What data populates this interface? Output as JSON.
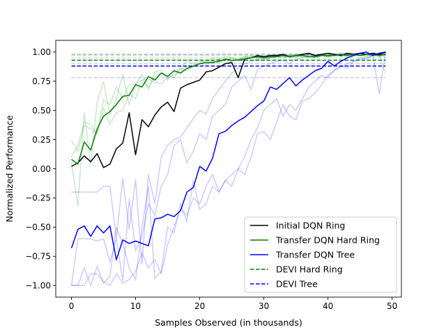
{
  "chart_data": {
    "type": "line",
    "title": "",
    "xlabel": "Samples Observed (in thousands)",
    "ylabel": "Normalized Performance",
    "xlim": [
      -2.45,
      51.45
    ],
    "ylim": [
      -1.1,
      1.1
    ],
    "xticks": [
      0,
      10,
      20,
      30,
      40,
      50
    ],
    "xtick_labels": [
      "0",
      "10",
      "20",
      "30",
      "40",
      "50"
    ],
    "yticks": [
      -1.0,
      -0.75,
      -0.5,
      -0.25,
      0.0,
      0.25,
      0.5,
      0.75,
      1.0
    ],
    "ytick_labels": [
      "−1.00",
      "−0.75",
      "−0.50",
      "−0.25",
      "0.00",
      "0.25",
      "0.50",
      "0.75",
      "1.00"
    ],
    "grid": false,
    "legend_position": "lower-right",
    "series": [
      {
        "name": "Initial DQN Ring",
        "color": "#000000",
        "style": "solid",
        "x_start": 0,
        "values": [
          0.02,
          0.05,
          0.11,
          0.06,
          0.13,
          0.01,
          0.04,
          0.17,
          0.22,
          0.48,
          0.12,
          0.42,
          0.36,
          0.46,
          0.53,
          0.57,
          0.49,
          0.69,
          0.72,
          0.74,
          0.76,
          0.83,
          0.84,
          0.87,
          0.9,
          0.91,
          0.78,
          0.94,
          0.95,
          0.97,
          0.96,
          0.97,
          0.97,
          0.98,
          0.96,
          0.97,
          0.98,
          0.99,
          0.97,
          0.98,
          0.99,
          0.98,
          0.97,
          0.99,
          0.98,
          0.99,
          0.98,
          0.99,
          0.98,
          1.0
        ]
      },
      {
        "name": "Transfer DQN Hard Ring",
        "color": "#008000",
        "style": "solid",
        "x_start": 0,
        "values": [
          0.08,
          0.04,
          0.23,
          0.16,
          0.34,
          0.45,
          0.49,
          0.55,
          0.62,
          0.63,
          0.72,
          0.7,
          0.79,
          0.76,
          0.82,
          0.79,
          0.84,
          0.82,
          0.86,
          0.88,
          0.9,
          0.91,
          0.91,
          0.92,
          0.94,
          0.93,
          0.93,
          0.94,
          0.95,
          0.96,
          0.95,
          0.96,
          0.96,
          0.97,
          0.96,
          0.97,
          0.97,
          0.96,
          0.96,
          0.97,
          0.97,
          0.97,
          0.98,
          0.97,
          0.98,
          0.97,
          0.98,
          0.98,
          0.97,
          0.98
        ]
      },
      {
        "name": "Transfer DQN Tree",
        "color": "#0000ff",
        "style": "solid",
        "x_start": 0,
        "values": [
          -0.68,
          -0.52,
          -0.49,
          -0.58,
          -0.49,
          -0.55,
          -0.49,
          -0.78,
          -0.61,
          -0.64,
          -0.62,
          -0.64,
          -0.66,
          -0.43,
          -0.42,
          -0.39,
          -0.41,
          -0.36,
          -0.2,
          -0.16,
          0.02,
          -0.02,
          0.09,
          0.3,
          0.32,
          0.37,
          0.41,
          0.44,
          0.49,
          0.54,
          0.58,
          0.7,
          0.68,
          0.73,
          0.78,
          0.71,
          0.76,
          0.8,
          0.84,
          0.86,
          0.92,
          0.88,
          0.92,
          0.95,
          0.97,
          0.99,
          1.0,
          0.97,
          0.99,
          1.0
        ]
      },
      {
        "name": "DEVI Hard Ring",
        "color": "#008000",
        "style": "dashed",
        "constant": 0.93
      },
      {
        "name": "DEVI Tree",
        "color": "#0000ff",
        "style": "dashed",
        "constant": 0.88
      }
    ],
    "faint_runs": [
      {
        "color": "#008000",
        "values": [
          0.24,
          0.15,
          0.37,
          0.34,
          0.3,
          0.59,
          0.55,
          0.7,
          0.6,
          0.72,
          0.73,
          0.76,
          0.77,
          0.74,
          0.73,
          0.78,
          0.8,
          0.85,
          0.88,
          0.87,
          0.9,
          0.89,
          0.92,
          0.91,
          0.93,
          0.92,
          0.94,
          0.95,
          0.96,
          0.95,
          0.94,
          0.95,
          0.96,
          0.97,
          0.95,
          0.96,
          0.97,
          0.96,
          0.97,
          0.98,
          0.96,
          0.97,
          0.96,
          0.98,
          0.97,
          0.97,
          0.98,
          0.97,
          0.96,
          0.97
        ]
      },
      {
        "color": "#008000",
        "values": [
          0.05,
          -0.32,
          0.48,
          0.04,
          0.57,
          0.75,
          0.46,
          0.6,
          0.81,
          0.55,
          0.72,
          0.81,
          0.68,
          0.83,
          0.85,
          0.76,
          0.82,
          0.87,
          0.92,
          0.9,
          0.93,
          0.91,
          0.95,
          0.94,
          0.96,
          0.95,
          0.93,
          0.96,
          0.97,
          0.95,
          0.96,
          0.97,
          0.98,
          0.96,
          0.97,
          0.98,
          0.97,
          0.98,
          0.96,
          0.97,
          0.98,
          0.98,
          0.97,
          0.98,
          0.97,
          0.98,
          0.97,
          0.98,
          0.97,
          0.82
        ]
      },
      {
        "color": "#008000",
        "values": [
          0.1,
          0.2,
          0.4,
          0.38,
          0.3,
          0.52,
          0.38,
          0.48,
          0.5,
          0.64,
          0.6,
          0.76,
          0.7,
          0.79,
          0.82,
          0.8,
          0.78,
          0.86,
          0.84,
          0.88,
          0.91,
          0.93,
          0.92,
          0.94,
          0.93,
          0.95,
          0.94,
          0.96,
          0.95,
          0.97,
          0.96,
          0.97,
          0.96,
          0.97,
          0.98,
          0.97,
          0.96,
          0.97,
          0.98,
          0.97,
          0.96,
          0.98,
          0.97,
          0.96,
          0.98,
          0.97,
          0.96,
          0.98,
          0.97,
          0.98
        ]
      },
      {
        "color": "#0000ff",
        "values": [
          -0.2,
          -0.2,
          -0.2,
          -0.2,
          -0.2,
          -0.15,
          -0.15,
          -0.6,
          -0.08,
          -0.52,
          -0.09,
          -0.82,
          -0.05,
          -0.3,
          0.1,
          0.2,
          0.25,
          0.27,
          0.35,
          0.43,
          0.5,
          0.47,
          0.6,
          0.68,
          0.75,
          0.82,
          0.86,
          0.9,
          0.92,
          0.94,
          0.93,
          0.95,
          0.96,
          0.95,
          0.97,
          0.96,
          0.97,
          0.98,
          0.97,
          0.98,
          0.97,
          0.98,
          0.99,
          0.98,
          0.99,
          0.98,
          0.99,
          0.98,
          0.99,
          1.0
        ]
      },
      {
        "color": "#0000ff",
        "values": [
          -1.0,
          -0.6,
          -0.6,
          -0.6,
          -0.62,
          -0.6,
          -0.8,
          -0.6,
          -0.96,
          -0.26,
          -0.7,
          -0.58,
          -0.3,
          -0.4,
          -0.15,
          -0.05,
          0.2,
          0.25,
          0.05,
          0.15,
          0.3,
          0.25,
          0.45,
          0.5,
          0.55,
          0.7,
          0.75,
          0.8,
          0.68,
          0.85,
          0.88,
          0.9,
          0.92,
          0.93,
          0.9,
          0.94,
          0.95,
          0.96,
          0.95,
          0.97,
          0.96,
          0.97,
          0.98,
          0.97,
          0.98,
          0.99,
          0.98,
          0.99,
          0.98,
          0.99
        ]
      },
      {
        "color": "#0000ff",
        "values": [
          -1.0,
          -1.0,
          -0.85,
          -1.0,
          -0.84,
          -0.98,
          -0.92,
          -0.5,
          -0.64,
          -0.85,
          -0.95,
          -0.5,
          -0.15,
          -0.94,
          -0.88,
          -0.5,
          -0.55,
          -0.3,
          -0.45,
          -0.1,
          -0.35,
          -0.3,
          -0.15,
          -0.2,
          -0.1,
          -0.05,
          0.0,
          0.1,
          0.25,
          0.35,
          0.5,
          0.55,
          0.6,
          0.45,
          0.55,
          0.5,
          0.6,
          0.7,
          0.75,
          0.8,
          0.78,
          0.85,
          0.87,
          0.9,
          0.92,
          0.95,
          0.94,
          0.97,
          0.64,
          1.0
        ]
      },
      {
        "color": "#0000ff",
        "values": [
          -1.0,
          -1.0,
          -1.0,
          -0.9,
          -0.9,
          -0.97,
          -1.0,
          -0.9,
          -0.98,
          -0.95,
          -0.88,
          -0.72,
          -0.85,
          -0.78,
          -0.9,
          -0.65,
          -0.5,
          -0.35,
          -0.4,
          -0.25,
          -0.3,
          -0.15,
          -0.05,
          -0.2,
          -0.1,
          -0.15,
          0.0,
          -0.05,
          0.1,
          0.3,
          0.32,
          0.25,
          0.4,
          0.55,
          0.45,
          0.42,
          0.58,
          0.6,
          0.65,
          0.72,
          0.8,
          0.84,
          0.88,
          0.86,
          0.92,
          0.94,
          0.95,
          0.97,
          0.98,
          0.99
        ]
      }
    ],
    "faint_constants": [
      {
        "color": "#008000",
        "value": 0.98
      },
      {
        "color": "#008000",
        "value": 0.97
      },
      {
        "color": "#008000",
        "value": 0.95
      },
      {
        "color": "#0000ff",
        "value": 0.98
      },
      {
        "color": "#0000ff",
        "value": 0.9
      },
      {
        "color": "#0000ff",
        "value": 0.78
      }
    ]
  }
}
